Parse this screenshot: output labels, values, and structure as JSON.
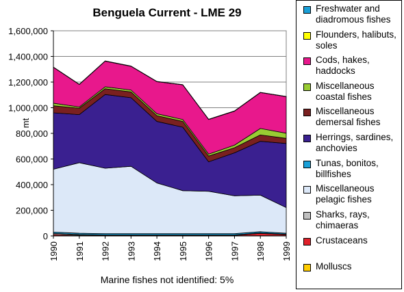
{
  "chart_data": {
    "type": "area",
    "stacked": true,
    "title": "Benguela Current - LME 29",
    "ylabel": "mt",
    "xlabel": "",
    "footnote": "Marine fishes not identified: 5%",
    "x": [
      "1990",
      "1991",
      "1992",
      "1993",
      "1994",
      "1995",
      "1996",
      "1997",
      "1998",
      "1999"
    ],
    "ylim": [
      0,
      1600000
    ],
    "yticks": [
      "0",
      "200,000",
      "400,000",
      "600,000",
      "800,000",
      "1,000,000",
      "1,200,000",
      "1,400,000",
      "1,600,000"
    ],
    "grid": true,
    "legend_position": "right",
    "series": [
      {
        "name": "Molluscs",
        "color": "#ffcc00",
        "values": [
          2000,
          2000,
          2000,
          2000,
          2000,
          2000,
          2000,
          2000,
          2000,
          2000
        ]
      },
      {
        "name": "Crustaceans",
        "color": "#e0202a",
        "values": [
          10000,
          3000,
          3000,
          3000,
          3000,
          3000,
          3000,
          3000,
          18000,
          8000
        ]
      },
      {
        "name": "Sharks, rays, chimaeras",
        "color": "#c0c0c0",
        "values": [
          8000,
          6000,
          3000,
          3000,
          3000,
          3000,
          3000,
          3000,
          3000,
          3000
        ]
      },
      {
        "name": "Tunas, bonitos, billfishes",
        "color": "#1aa0d8",
        "values": [
          10000,
          10000,
          10000,
          10000,
          10000,
          10000,
          10000,
          10000,
          10000,
          8000
        ]
      },
      {
        "name": "Miscellaneous pelagic fishes",
        "color": "#dce8f8",
        "values": [
          490000,
          550000,
          510000,
          525000,
          395000,
          335000,
          330000,
          295000,
          285000,
          200000
        ]
      },
      {
        "name": "Herrings, sardines, anchovies",
        "color": "#3a2090",
        "values": [
          440000,
          375000,
          575000,
          535000,
          480000,
          495000,
          230000,
          335000,
          420000,
          500000
        ]
      },
      {
        "name": "Miscellaneous demersal fishes",
        "color": "#7a2020",
        "values": [
          55000,
          50000,
          45000,
          45000,
          45000,
          45000,
          45000,
          40000,
          50000,
          40000
        ]
      },
      {
        "name": "Miscellaneous coastal fishes",
        "color": "#99cc33",
        "values": [
          20000,
          10000,
          15000,
          15000,
          15000,
          15000,
          15000,
          20000,
          50000,
          40000
        ]
      },
      {
        "name": "Cods, hakes, haddocks",
        "color": "#e8188c",
        "values": [
          280000,
          175000,
          200000,
          185000,
          250000,
          270000,
          270000,
          265000,
          280000,
          285000
        ]
      },
      {
        "name": "Flounders, halibuts, soles",
        "color": "#ffff00",
        "values": [
          1000,
          1000,
          1000,
          1000,
          1000,
          1000,
          1000,
          1000,
          1000,
          1000
        ]
      },
      {
        "name": "Freshwater and diadromous fishes",
        "color": "#1aa0d8",
        "values": [
          1000,
          1000,
          1000,
          1000,
          1000,
          1000,
          1000,
          1000,
          1000,
          1000
        ]
      }
    ]
  },
  "legend": {
    "items": [
      {
        "label": "Freshwater and diadromous fishes",
        "color": "#1aa0d8"
      },
      {
        "label": "Flounders, halibuts, soles",
        "color": "#ffff00"
      },
      {
        "label": "Cods, hakes, haddocks",
        "color": "#e8188c"
      },
      {
        "label": "Miscellaneous coastal fishes",
        "color": "#99cc33"
      },
      {
        "label": "Miscellaneous demersal fishes",
        "color": "#7a2020"
      },
      {
        "label": "Herrings, sardines, anchovies",
        "color": "#3a2090"
      },
      {
        "label": "Tunas, bonitos, billfishes",
        "color": "#1aa0d8"
      },
      {
        "label": "Miscellaneous pelagic fishes",
        "color": "#dce8f8"
      },
      {
        "label": "Sharks, rays, chimaeras",
        "color": "#c0c0c0"
      },
      {
        "label": "Crustaceans",
        "color": "#e0202a"
      },
      {
        "label": "Molluscs",
        "color": "#ffcc00"
      }
    ]
  }
}
